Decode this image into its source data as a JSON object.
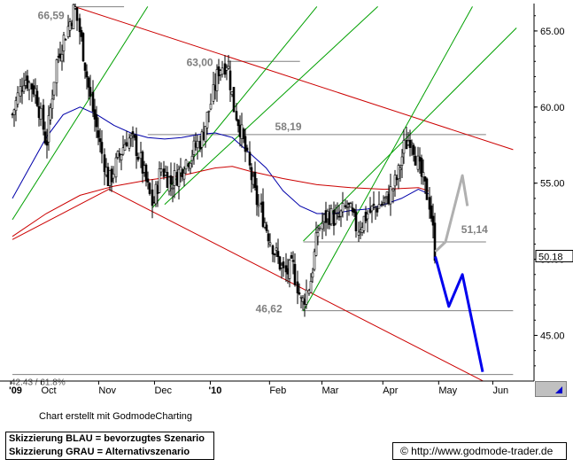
{
  "chart_data": {
    "type": "candlestick",
    "title": "",
    "x_labels": [
      "'09",
      "Oct",
      "Nov",
      "Dec",
      "'10",
      "Feb",
      "Mar",
      "Apr",
      "May",
      "Jun"
    ],
    "y_ticks": [
      "65.00",
      "60.00",
      "55.00",
      "50.00",
      "45.00"
    ],
    "ylim": [
      42.0,
      66.8
    ],
    "last_price_label": "50.18",
    "annotations": [
      {
        "label": "66,59",
        "value": 66.59
      },
      {
        "label": "63,00",
        "value": 63.0
      },
      {
        "label": "58,19",
        "value": 58.19
      },
      {
        "label": "51,14",
        "value": 51.14
      },
      {
        "label": "46,62",
        "value": 46.62
      },
      {
        "label": "42.43 / 61.8%",
        "value": 42.43
      }
    ],
    "price_path": [
      [
        0.0,
        59.5
      ],
      [
        0.35,
        62.0
      ],
      [
        0.7,
        61.0
      ],
      [
        1.0,
        57.5
      ],
      [
        1.3,
        63.0
      ],
      [
        1.6,
        65.0
      ],
      [
        1.85,
        66.59
      ],
      [
        2.1,
        63.5
      ],
      [
        2.35,
        60.0
      ],
      [
        2.6,
        57.5
      ],
      [
        2.85,
        55.0
      ],
      [
        3.1,
        56.5
      ],
      [
        3.4,
        58.0
      ],
      [
        3.65,
        57.5
      ],
      [
        3.9,
        55.5
      ],
      [
        4.15,
        53.5
      ],
      [
        4.4,
        56.0
      ],
      [
        4.7,
        55.0
      ],
      [
        5.0,
        56.0
      ],
      [
        5.3,
        57.0
      ],
      [
        5.6,
        58.0
      ],
      [
        5.9,
        60.5
      ],
      [
        6.1,
        62.5
      ],
      [
        6.35,
        63.0
      ],
      [
        6.55,
        60.0
      ],
      [
        6.75,
        58.5
      ],
      [
        6.95,
        56.5
      ],
      [
        7.2,
        54.0
      ],
      [
        7.45,
        52.5
      ],
      [
        7.75,
        50.5
      ],
      [
        8.05,
        49.0
      ],
      [
        8.3,
        49.5
      ],
      [
        8.55,
        47.0
      ],
      [
        8.8,
        48.5
      ],
      [
        9.05,
        52.0
      ],
      [
        9.35,
        53.0
      ],
      [
        9.6,
        52.5
      ],
      [
        9.9,
        53.5
      ],
      [
        10.2,
        52.0
      ],
      [
        10.5,
        53.0
      ],
      [
        10.8,
        53.5
      ],
      [
        11.1,
        54.0
      ],
      [
        11.4,
        55.5
      ],
      [
        11.6,
        57.5
      ],
      [
        11.8,
        58.19
      ],
      [
        12.0,
        56.0
      ],
      [
        12.15,
        55.0
      ],
      [
        12.3,
        54.0
      ],
      [
        12.4,
        52.5
      ],
      [
        12.5,
        50.18
      ]
    ],
    "moving_averages": [
      {
        "color": "#0000aa",
        "values": [
          [
            0.0,
            54.0
          ],
          [
            0.5,
            56.0
          ],
          [
            1.0,
            58.0
          ],
          [
            1.5,
            59.5
          ],
          [
            2.0,
            60.0
          ],
          [
            2.5,
            59.5
          ],
          [
            3.0,
            58.8
          ],
          [
            3.5,
            58.3
          ],
          [
            4.0,
            58.0
          ],
          [
            4.5,
            57.9
          ],
          [
            5.0,
            58.0
          ],
          [
            5.5,
            58.2
          ],
          [
            6.0,
            58.3
          ],
          [
            6.5,
            58.0
          ],
          [
            7.0,
            57.0
          ],
          [
            7.5,
            56.0
          ],
          [
            8.0,
            54.5
          ],
          [
            8.5,
            53.5
          ],
          [
            9.0,
            53.0
          ],
          [
            9.5,
            53.0
          ],
          [
            10.0,
            53.2
          ],
          [
            10.5,
            53.3
          ],
          [
            11.0,
            53.6
          ],
          [
            11.5,
            54.0
          ],
          [
            12.0,
            54.6
          ],
          [
            12.3,
            54.3
          ]
        ]
      },
      {
        "color": "#cc0000",
        "values": [
          [
            0.0,
            51.5
          ],
          [
            1.0,
            53.0
          ],
          [
            2.0,
            54.2
          ],
          [
            3.0,
            54.8
          ],
          [
            4.0,
            55.2
          ],
          [
            5.0,
            55.5
          ],
          [
            6.0,
            56.0
          ],
          [
            6.5,
            56.1
          ],
          [
            7.0,
            55.8
          ],
          [
            8.0,
            55.3
          ],
          [
            9.0,
            54.9
          ],
          [
            10.0,
            54.7
          ],
          [
            11.0,
            54.6
          ],
          [
            12.0,
            54.7
          ],
          [
            12.3,
            54.5
          ]
        ]
      }
    ],
    "scenarios": [
      {
        "name": "BLAU",
        "color": "#0000ee",
        "values": [
          [
            12.5,
            50.18
          ],
          [
            12.9,
            46.9
          ],
          [
            13.3,
            49.0
          ],
          [
            13.9,
            42.6
          ]
        ]
      },
      {
        "name": "GRAU",
        "color": "#b0b0b0",
        "values": [
          [
            12.5,
            50.5
          ],
          [
            12.8,
            51.14
          ],
          [
            13.3,
            55.5
          ],
          [
            13.45,
            53.5
          ]
        ]
      }
    ],
    "trend_lines": [
      {
        "color": "#cc0000",
        "values": [
          [
            1.85,
            66.59
          ],
          [
            14.8,
            57.2
          ]
        ]
      },
      {
        "color": "#cc0000",
        "values": [
          [
            0.0,
            51.3
          ],
          [
            2.85,
            54.6
          ],
          [
            14.0,
            41.9
          ]
        ]
      },
      {
        "color": "#00a000",
        "values": [
          [
            0.0,
            52.6
          ],
          [
            4.0,
            66.6
          ]
        ]
      },
      {
        "color": "#00a000",
        "values": [
          [
            4.15,
            53.4
          ],
          [
            9.0,
            66.6
          ]
        ]
      },
      {
        "color": "#00a000",
        "values": [
          [
            4.5,
            53.6
          ],
          [
            10.8,
            66.6
          ]
        ]
      },
      {
        "color": "#00a000",
        "values": [
          [
            8.6,
            46.6
          ],
          [
            13.6,
            66.6
          ]
        ]
      },
      {
        "color": "#00a000",
        "values": [
          [
            8.6,
            51.2
          ],
          [
            14.9,
            65.2
          ]
        ]
      }
    ],
    "horizontal_levels": [
      {
        "value": 66.59,
        "from": 1.85,
        "to": 3.3
      },
      {
        "value": 63.0,
        "from": 6.35,
        "to": 8.5
      },
      {
        "value": 58.19,
        "from": 4.0,
        "to": 14.0
      },
      {
        "value": 51.14,
        "from": 8.6,
        "to": 14.0
      },
      {
        "value": 46.62,
        "from": 8.55,
        "to": 14.8
      },
      {
        "value": 42.43,
        "from": 0.0,
        "to": 14.8
      }
    ]
  },
  "footer": {
    "credit": "Chart erstellt mit GodmodeCharting",
    "legend_blue": "Skizzierung BLAU = bevorzugtes Szenario",
    "legend_grey": "Skizzierung GRAU = Alternativszenario",
    "website": "© http://www.godmode-trader.de"
  }
}
